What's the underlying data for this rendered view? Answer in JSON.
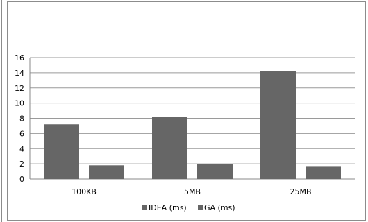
{
  "chart_data": {
    "type": "bar",
    "categories": [
      "100KB",
      "5MB",
      "25MB"
    ],
    "series": [
      {
        "name": "IDEA (ms)",
        "values": [
          7.2,
          8.2,
          14.2
        ],
        "color": "#666666"
      },
      {
        "name": "GA (ms)",
        "values": [
          1.8,
          2.0,
          1.7
        ],
        "color": "#666666"
      }
    ],
    "yticks": [
      "0",
      "2",
      "4",
      "6",
      "8",
      "10",
      "12",
      "14",
      "16"
    ],
    "ylim": [
      0,
      16
    ],
    "grid": true,
    "legend_position": "bottom"
  }
}
